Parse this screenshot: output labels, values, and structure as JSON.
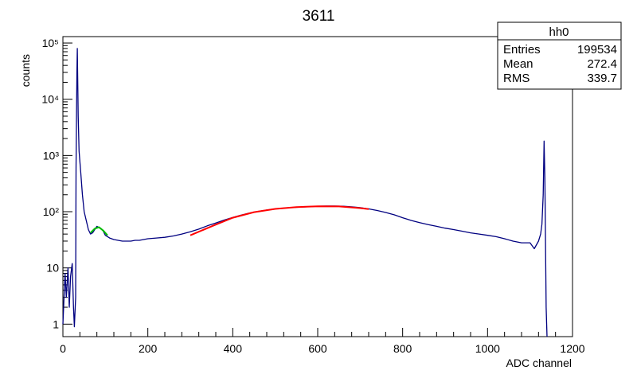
{
  "chart_data": {
    "type": "histogram",
    "title": "3611",
    "xlabel": "ADC channel",
    "ylabel": "counts",
    "xlim": [
      0,
      1200
    ],
    "ylim": [
      0.6,
      130000
    ],
    "yscale": "log",
    "grid": false,
    "x_ticks": [
      0,
      200,
      400,
      600,
      800,
      1000,
      1200
    ],
    "y_ticks": [
      {
        "value": 1,
        "label": "1"
      },
      {
        "value": 10,
        "label": "10"
      },
      {
        "value": 100,
        "label": "10²"
      },
      {
        "value": 1000,
        "label": "10³"
      },
      {
        "value": 10000,
        "label": "10⁴"
      },
      {
        "value": 100000,
        "label": "10⁵"
      }
    ],
    "stats_box": {
      "name": "hh0",
      "position": "top-right",
      "rows": [
        {
          "label": "Entries",
          "value": "199534"
        },
        {
          "label": "Mean",
          "value": "272.4"
        },
        {
          "label": "RMS",
          "value": "339.7"
        }
      ]
    },
    "series": [
      {
        "color": "#000080",
        "points": [
          [
            0,
            1
          ],
          [
            5,
            8
          ],
          [
            8,
            3
          ],
          [
            12,
            10
          ],
          [
            15,
            2
          ],
          [
            18,
            7
          ],
          [
            22,
            12
          ],
          [
            25,
            2
          ],
          [
            27,
            0.9
          ],
          [
            30,
            3
          ],
          [
            31,
            600
          ],
          [
            33,
            30000
          ],
          [
            34,
            80000
          ],
          [
            36,
            5000
          ],
          [
            38,
            1200
          ],
          [
            42,
            500
          ],
          [
            46,
            200
          ],
          [
            50,
            100
          ],
          [
            55,
            70
          ],
          [
            60,
            48
          ],
          [
            65,
            40
          ],
          [
            70,
            42
          ],
          [
            75,
            48
          ],
          [
            80,
            55
          ],
          [
            85,
            52
          ],
          [
            90,
            50
          ],
          [
            95,
            45
          ],
          [
            100,
            38
          ],
          [
            110,
            34
          ],
          [
            120,
            32
          ],
          [
            130,
            31
          ],
          [
            140,
            30
          ],
          [
            150,
            30
          ],
          [
            160,
            30
          ],
          [
            170,
            31
          ],
          [
            180,
            31
          ],
          [
            190,
            32
          ],
          [
            200,
            33
          ],
          [
            220,
            34
          ],
          [
            240,
            35
          ],
          [
            260,
            37
          ],
          [
            280,
            40
          ],
          [
            300,
            44
          ],
          [
            320,
            49
          ],
          [
            340,
            56
          ],
          [
            360,
            63
          ],
          [
            380,
            71
          ],
          [
            400,
            79
          ],
          [
            420,
            87
          ],
          [
            440,
            95
          ],
          [
            460,
            101
          ],
          [
            480,
            107
          ],
          [
            500,
            112
          ],
          [
            520,
            116
          ],
          [
            540,
            119
          ],
          [
            560,
            121
          ],
          [
            580,
            123
          ],
          [
            600,
            125
          ],
          [
            620,
            126
          ],
          [
            640,
            126
          ],
          [
            660,
            125
          ],
          [
            680,
            122
          ],
          [
            700,
            118
          ],
          [
            720,
            112
          ],
          [
            740,
            105
          ],
          [
            760,
            97
          ],
          [
            780,
            88
          ],
          [
            800,
            78
          ],
          [
            820,
            70
          ],
          [
            840,
            64
          ],
          [
            860,
            59
          ],
          [
            880,
            55
          ],
          [
            900,
            51
          ],
          [
            920,
            48
          ],
          [
            940,
            45
          ],
          [
            960,
            42
          ],
          [
            980,
            40
          ],
          [
            1000,
            38
          ],
          [
            1020,
            36
          ],
          [
            1040,
            33
          ],
          [
            1060,
            30
          ],
          [
            1080,
            28
          ],
          [
            1100,
            28
          ],
          [
            1110,
            22
          ],
          [
            1120,
            30
          ],
          [
            1125,
            40
          ],
          [
            1128,
            60
          ],
          [
            1131,
            200
          ],
          [
            1133,
            1800
          ],
          [
            1135,
            400
          ],
          [
            1138,
            2
          ],
          [
            1140,
            0.6
          ]
        ]
      },
      {
        "color": "#ff0000",
        "points": [
          [
            300,
            38
          ],
          [
            350,
            55
          ],
          [
            400,
            78
          ],
          [
            450,
            98
          ],
          [
            500,
            112
          ],
          [
            550,
            121
          ],
          [
            600,
            125
          ],
          [
            650,
            124
          ],
          [
            700,
            116
          ],
          [
            720,
            111
          ]
        ]
      },
      {
        "color": "#00bb00",
        "points": [
          [
            65,
            42
          ],
          [
            75,
            50
          ],
          [
            85,
            53
          ],
          [
            95,
            46
          ],
          [
            105,
            38
          ]
        ]
      }
    ]
  }
}
